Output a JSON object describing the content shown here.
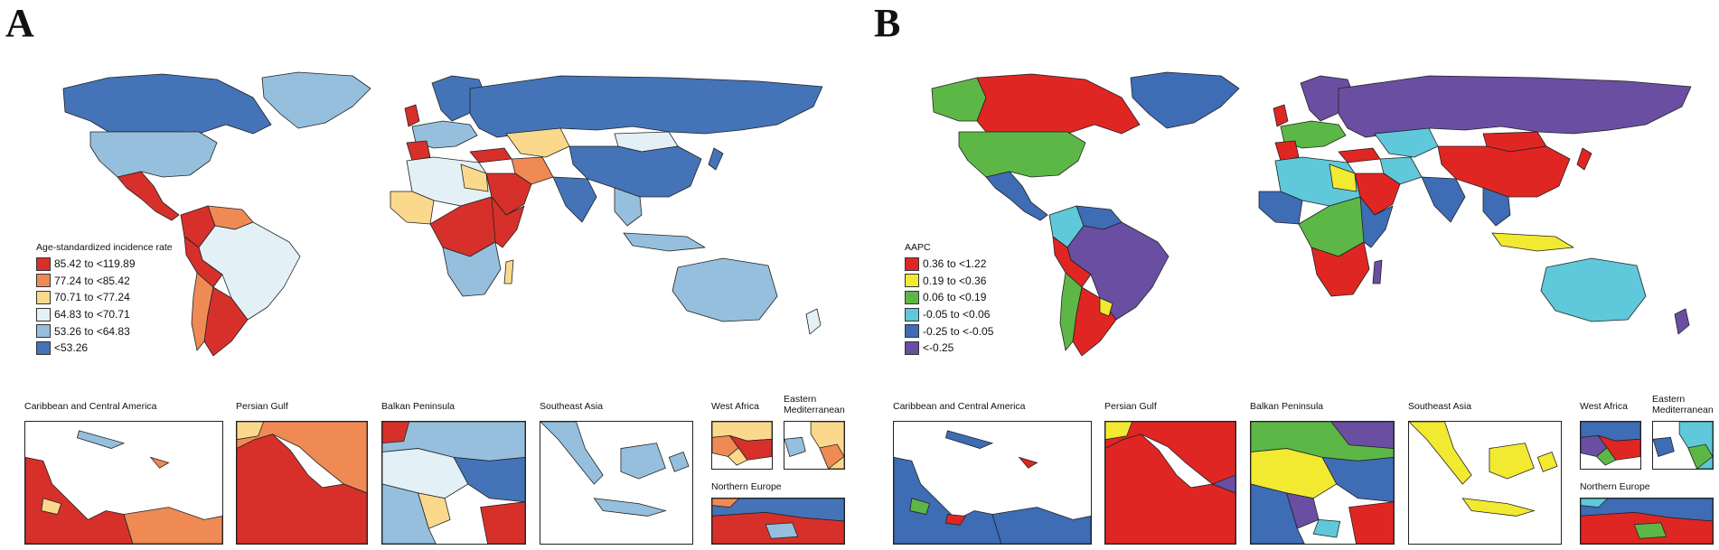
{
  "panels": [
    {
      "letter": "A",
      "legend": {
        "title": "Age-standardized incidence rate",
        "items": [
          {
            "label": "85.42 to <119.89",
            "color": "#d7302a"
          },
          {
            "label": "77.24 to <85.42",
            "color": "#ef8a55"
          },
          {
            "label": "70.71 to <77.24",
            "color": "#fbd98c"
          },
          {
            "label": "64.83 to <70.71",
            "color": "#e3f0f6"
          },
          {
            "label": "53.26 to <64.83",
            "color": "#95bfdd"
          },
          {
            "label": "<53.26",
            "color": "#4473b8"
          }
        ]
      },
      "insets": [
        {
          "title": "Caribbean and Central America"
        },
        {
          "title": "Persian Gulf"
        },
        {
          "title": "Balkan Peninsula"
        },
        {
          "title": "Southeast Asia"
        },
        {
          "title": "West Africa"
        },
        {
          "title": "Eastern\nMediterranean"
        },
        {
          "title": "Northern Europe"
        }
      ]
    },
    {
      "letter": "B",
      "legend": {
        "title": "AAPC",
        "items": [
          {
            "label": "0.36 to <1.22",
            "color": "#e02623"
          },
          {
            "label": "0.19 to <0.36",
            "color": "#f2e931"
          },
          {
            "label": "0.06 to <0.19",
            "color": "#5db746"
          },
          {
            "label": "-0.05 to <0.06",
            "color": "#5fc8da"
          },
          {
            "label": "-0.25 to <-0.05",
            "color": "#3e6cb5"
          },
          {
            "label": "<-0.25",
            "color": "#6a4ea2"
          }
        ]
      },
      "insets": [
        {
          "title": "Caribbean and Central America"
        },
        {
          "title": "Persian Gulf"
        },
        {
          "title": "Balkan Peninsula"
        },
        {
          "title": "Southeast Asia"
        },
        {
          "title": "West Africa"
        },
        {
          "title": "Eastern\nMediterranean"
        },
        {
          "title": "Northern Europe"
        }
      ]
    }
  ]
}
